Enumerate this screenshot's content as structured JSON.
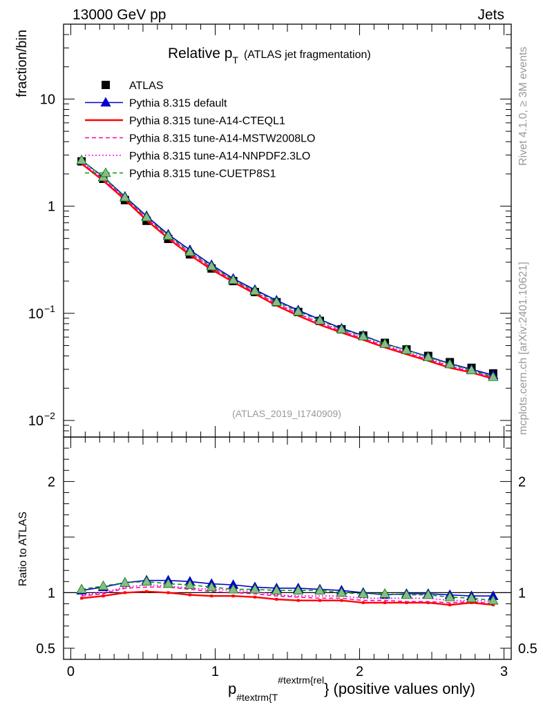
{
  "header": {
    "energy_label": "13000 GeV pp",
    "process_label": "Jets",
    "rivet_label": "Rivet 4.1.0, ≥ 3M events",
    "source_label": "mcplots.cern.ch [arXiv:2401.10621]",
    "analysis_label": "(ATLAS_2019_I1740909)"
  },
  "chart_data": [
    {
      "type": "line",
      "title_main": "Relative p",
      "title_sub": "T",
      "title_note": "(ATLAS jet fragmentation)",
      "ylabel": "fraction/bin",
      "yscale": "log",
      "ylim": [
        0.007,
        50
      ],
      "xlim": [
        -0.05,
        3.05
      ],
      "yticks": [
        {
          "value": 10,
          "label": "10"
        },
        {
          "value": 1,
          "label": "1"
        },
        {
          "value": 0.1,
          "label": "10",
          "exp": "−1"
        },
        {
          "value": 0.01,
          "label": "10",
          "exp": "−2"
        }
      ],
      "x": [
        0.075,
        0.225,
        0.375,
        0.525,
        0.675,
        0.825,
        0.975,
        1.125,
        1.275,
        1.425,
        1.575,
        1.725,
        1.875,
        2.025,
        2.175,
        2.325,
        2.475,
        2.625,
        2.775,
        2.925
      ],
      "series": [
        {
          "name": "ATLAS",
          "color": "#000000",
          "style": "data",
          "values": [
            2.62,
            1.8,
            1.14,
            0.73,
            0.495,
            0.355,
            0.262,
            0.2,
            0.158,
            0.127,
            0.103,
            0.085,
            0.071,
            0.062,
            0.053,
            0.046,
            0.04,
            0.035,
            0.031,
            0.0275
          ]
        },
        {
          "name": "Pythia 8.315 default",
          "color": "#0000cc",
          "style": "solid-triangle",
          "values": [
            2.67,
            1.88,
            1.23,
            0.81,
            0.545,
            0.39,
            0.283,
            0.211,
            0.166,
            0.132,
            0.107,
            0.0875,
            0.0725,
            0.062,
            0.052,
            0.0455,
            0.0395,
            0.034,
            0.03,
            0.0265
          ]
        },
        {
          "name": "Pythia 8.315 tune-A14-CTEQL1",
          "color": "#ff0000",
          "style": "solid",
          "values": [
            2.49,
            1.73,
            1.15,
            0.74,
            0.5,
            0.35,
            0.256,
            0.196,
            0.152,
            0.118,
            0.095,
            0.078,
            0.066,
            0.0565,
            0.048,
            0.0415,
            0.036,
            0.031,
            0.028,
            0.0245
          ]
        },
        {
          "name": "Pythia 8.315 tune-A14-MSTW2008LO",
          "color": "#ff00aa",
          "style": "dashed",
          "values": [
            2.55,
            1.78,
            1.19,
            0.77,
            0.52,
            0.365,
            0.266,
            0.202,
            0.157,
            0.122,
            0.099,
            0.081,
            0.068,
            0.058,
            0.0495,
            0.0425,
            0.037,
            0.032,
            0.0285,
            0.025
          ]
        },
        {
          "name": "Pythia 8.315 tune-A14-NNPDF2.3LO",
          "color": "#ff00ff",
          "style": "dotted",
          "values": [
            2.57,
            1.8,
            1.2,
            0.78,
            0.525,
            0.37,
            0.27,
            0.205,
            0.159,
            0.124,
            0.1,
            0.0825,
            0.069,
            0.059,
            0.0505,
            0.0435,
            0.038,
            0.0325,
            0.029,
            0.0255
          ]
        },
        {
          "name": "Pythia 8.315 tune-CUETP8S1",
          "color": "#009900",
          "style": "dashed-triangle",
          "values": [
            2.69,
            1.87,
            1.21,
            0.79,
            0.53,
            0.375,
            0.275,
            0.205,
            0.162,
            0.128,
            0.104,
            0.086,
            0.071,
            0.061,
            0.052,
            0.0455,
            0.039,
            0.0335,
            0.0295,
            0.0255
          ]
        }
      ]
    },
    {
      "type": "line",
      "ylabel": "Ratio to ATLAS",
      "xlabel_main": "p",
      "xlabel_sub": "#textrm{T",
      "xlabel_sup": "#textrm{rel",
      "xlabel_tail": "} (positive values only)",
      "ylim": [
        0.4,
        2.4
      ],
      "xlim": [
        -0.05,
        3.05
      ],
      "yticks": [
        {
          "value": 2,
          "label": "2"
        },
        {
          "value": 1,
          "label": "1"
        },
        {
          "value": 0.5,
          "label": "0.5"
        }
      ],
      "xticks": [
        {
          "value": 0,
          "label": "0"
        },
        {
          "value": 1,
          "label": "1"
        },
        {
          "value": 2,
          "label": "2"
        },
        {
          "value": 3,
          "label": "3"
        }
      ],
      "x": [
        0.075,
        0.225,
        0.375,
        0.525,
        0.675,
        0.825,
        0.975,
        1.125,
        1.275,
        1.425,
        1.575,
        1.725,
        1.875,
        2.025,
        2.175,
        2.325,
        2.475,
        2.625,
        2.775,
        2.925
      ],
      "series": [
        {
          "name": "Pythia 8.315 default",
          "color": "#0000cc",
          "style": "solid-triangle",
          "values": [
            1.02,
            1.05,
            1.09,
            1.11,
            1.11,
            1.1,
            1.08,
            1.07,
            1.05,
            1.04,
            1.04,
            1.03,
            1.02,
            1.0,
            0.98,
            0.99,
            0.99,
            0.98,
            0.97,
            0.97
          ]
        },
        {
          "name": "Pythia 8.315 tune-A14-CTEQL1",
          "color": "#ff0000",
          "style": "solid",
          "values": [
            0.95,
            0.97,
            1.0,
            1.01,
            1.0,
            0.98,
            0.97,
            0.97,
            0.96,
            0.94,
            0.93,
            0.93,
            0.93,
            0.91,
            0.91,
            0.91,
            0.91,
            0.89,
            0.91,
            0.89
          ]
        },
        {
          "name": "Pythia 8.315 tune-A14-MSTW2008LO",
          "color": "#ff00aa",
          "style": "dashed",
          "values": [
            0.97,
            0.99,
            1.04,
            1.05,
            1.05,
            1.03,
            1.01,
            1.0,
            0.99,
            0.97,
            0.96,
            0.95,
            0.95,
            0.93,
            0.93,
            0.92,
            0.92,
            0.91,
            0.92,
            0.9
          ]
        },
        {
          "name": "Pythia 8.315 tune-A14-NNPDF2.3LO",
          "color": "#ff00ff",
          "style": "dotted",
          "values": [
            0.98,
            1.0,
            1.05,
            1.07,
            1.06,
            1.04,
            1.03,
            1.02,
            1.01,
            0.98,
            0.97,
            0.97,
            0.97,
            0.95,
            0.95,
            0.95,
            0.95,
            0.93,
            0.93,
            0.92
          ]
        },
        {
          "name": "Pythia 8.315 tune-CUETP8S1",
          "color": "#009900",
          "style": "dashed-triangle",
          "values": [
            1.03,
            1.06,
            1.09,
            1.1,
            1.08,
            1.07,
            1.05,
            1.03,
            1.03,
            1.02,
            1.02,
            1.02,
            1.0,
            0.99,
            0.99,
            0.98,
            0.98,
            0.96,
            0.95,
            0.93
          ]
        }
      ]
    }
  ]
}
